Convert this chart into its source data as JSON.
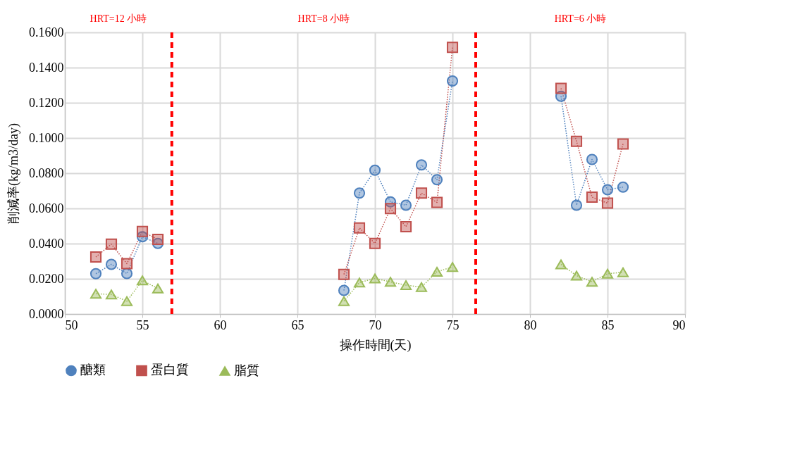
{
  "chart_data": {
    "type": "line",
    "xlabel": "操作時間(天)",
    "ylabel": "削減率(kg/m3/day)",
    "x": [
      52,
      53,
      54,
      55,
      56,
      57,
      68,
      69,
      70,
      71,
      72,
      73,
      74,
      75,
      76,
      82,
      83,
      84,
      85,
      86
    ],
    "series": [
      {
        "name": "醣類",
        "color": "#4f81bd",
        "marker": "circle",
        "values": [
          0.0229,
          0.0282,
          0.023,
          0.0439,
          0.0401,
          null,
          0.0134,
          0.0687,
          0.0817,
          0.0637,
          0.0618,
          0.0847,
          0.0763,
          0.1324,
          null,
          0.1237,
          0.0618,
          0.0878,
          0.0706,
          0.0721
        ]
      },
      {
        "name": "蛋白質",
        "color": "#c0504d",
        "marker": "square",
        "values": [
          0.0324,
          0.0397,
          0.0286,
          0.0469,
          0.0424,
          null,
          0.0225,
          0.0489,
          0.0401,
          0.0599,
          0.0496,
          0.0687,
          0.0634,
          0.1515,
          null,
          0.1282,
          0.0981,
          0.0664,
          0.063,
          0.0966
        ]
      },
      {
        "name": "脂質",
        "color": "#9bbb59",
        "marker": "triangle",
        "values": [
          0.0115,
          0.0111,
          0.0073,
          0.0191,
          0.0145,
          null,
          0.0073,
          0.0179,
          0.0202,
          0.0183,
          0.0164,
          0.0153,
          0.024,
          0.0267,
          null,
          0.0282,
          0.0218,
          0.0183,
          0.0229,
          0.0237
        ]
      }
    ],
    "xlim": [
      50,
      90
    ],
    "xticks": [
      50,
      55,
      60,
      65,
      70,
      75,
      80,
      85,
      90
    ],
    "ylim": [
      0,
      0.16
    ],
    "yticks": [
      {
        "value": 0,
        "label": "0.0000"
      },
      {
        "value": 0.02,
        "label": "0.0200"
      },
      {
        "value": 0.04,
        "label": "0.0400"
      },
      {
        "value": 0.06,
        "label": "0.0600"
      },
      {
        "value": 0.08,
        "label": "0.0800"
      },
      {
        "value": 0.1,
        "label": "0.1000"
      },
      {
        "value": 0.12,
        "label": "0.1200"
      },
      {
        "value": 0.14,
        "label": "0.1400"
      },
      {
        "value": 0.16,
        "label": "0.1600"
      }
    ],
    "ref_lines": [
      {
        "axis": "x",
        "value": 56.9,
        "color": "#ff0000",
        "line_style": "dashed"
      },
      {
        "axis": "x",
        "value": 76.5,
        "color": "#ff0000",
        "line_style": "dashed"
      }
    ],
    "annotations": [
      "HRT=12 小時",
      "HRT=8 小時",
      "HRT=6 小時"
    ],
    "grid": true,
    "legend": "bottom",
    "line_style": "dotted"
  }
}
